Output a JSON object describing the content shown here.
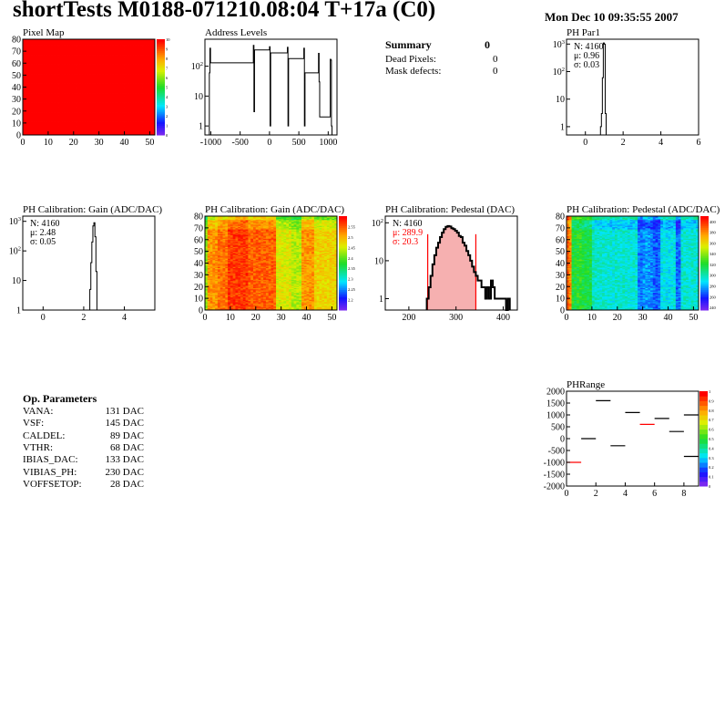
{
  "header": {
    "title": "shortTests M0188-071210.08:04 T+17a (C0)",
    "date": "Mon Dec 10 09:35:55 2007"
  },
  "summary": {
    "title": "Summary",
    "total": "0",
    "rows": [
      {
        "label": "Dead Pixels:",
        "value": "0"
      },
      {
        "label": "Mask defects:",
        "value": "0"
      }
    ]
  },
  "op_parameters": {
    "title": "Op. Parameters",
    "rows": [
      {
        "label": "VANA:",
        "value": "131 DAC"
      },
      {
        "label": "VSF:",
        "value": "145 DAC"
      },
      {
        "label": "CALDEL:",
        "value": "89 DAC"
      },
      {
        "label": "VTHR:",
        "value": "68 DAC"
      },
      {
        "label": "IBIAS_DAC:",
        "value": "133 DAC"
      },
      {
        "label": "VIBIAS_PH:",
        "value": "230 DAC"
      },
      {
        "label": "VOFFSETOP:",
        "value": "28 DAC"
      }
    ]
  },
  "chart_data": [
    {
      "id": "pixelmap",
      "type": "heatmap",
      "title": "Pixel Map",
      "xlim": [
        0,
        52
      ],
      "ylim": [
        0,
        80
      ],
      "zlim": [
        0,
        10
      ],
      "xticks": [
        "0",
        "10",
        "20",
        "30",
        "40",
        "50"
      ],
      "yticks": [
        "0",
        "10",
        "20",
        "30",
        "40",
        "50",
        "60",
        "70",
        "80"
      ],
      "zticks": [
        "0",
        "1",
        "2",
        "3",
        "4",
        "5",
        "6",
        "7",
        "8",
        "9",
        "10"
      ],
      "uniform_value": 10
    },
    {
      "id": "address",
      "type": "bar",
      "title": "Address Levels",
      "xlim": [
        -1100,
        1150
      ],
      "ylim": [
        0.5,
        800
      ],
      "ylog": true,
      "xticks": [
        "-1000",
        "-500",
        "0",
        "500",
        "1000"
      ],
      "yticks": [
        "1",
        "10",
        "10^2"
      ],
      "bin_width": 10,
      "bins": [
        [
          -1025,
          60
        ],
        [
          -1015,
          400
        ],
        [
          -285,
          130
        ],
        [
          -275,
          500
        ],
        [
          -265,
          3
        ],
        [
          -10,
          350
        ],
        [
          0,
          450
        ],
        [
          10,
          1
        ],
        [
          295,
          280
        ],
        [
          305,
          430
        ],
        [
          315,
          1
        ],
        [
          575,
          180
        ],
        [
          585,
          400
        ],
        [
          595,
          1
        ],
        [
          825,
          60
        ],
        [
          835,
          270
        ],
        [
          845,
          30
        ],
        [
          1025,
          2
        ],
        [
          1035,
          170
        ],
        [
          1045,
          160
        ],
        [
          1055,
          1
        ]
      ]
    },
    {
      "id": "phpar1",
      "type": "bar",
      "title": "PH Par1",
      "xlim": [
        -1,
        6
      ],
      "ylim": [
        0.5,
        1500
      ],
      "ylog": true,
      "xticks": [
        "0",
        "2",
        "4",
        "6"
      ],
      "yticks": [
        "1",
        "10",
        "10^2",
        "10^3"
      ],
      "stats": [
        "N: 4160",
        "μ: 0.96",
        "σ: 0.03"
      ],
      "bin_start": 0.8,
      "bin_width": 0.05,
      "counts": [
        1,
        3,
        60,
        1100,
        1000,
        3
      ]
    },
    {
      "id": "gainhist",
      "type": "bar",
      "title": "PH Calibration: Gain (ADC/DAC)",
      "xlim": [
        -1,
        5.5
      ],
      "ylim": [
        1,
        1500
      ],
      "ylog": true,
      "xticks": [
        "0",
        "2",
        "4"
      ],
      "yticks": [
        "1",
        "10",
        "10^2",
        "10^3"
      ],
      "stats": [
        "N: 4160",
        "μ: 2.48",
        "σ: 0.05"
      ],
      "bin_start": 2.2,
      "bin_width": 0.05,
      "counts": [
        1,
        1,
        5,
        40,
        200,
        700,
        900,
        300,
        20,
        1
      ]
    },
    {
      "id": "gainmap",
      "type": "heatmap",
      "title": "PH Calibration: Gain (ADC/DAC)",
      "xlim": [
        0,
        52
      ],
      "ylim": [
        0,
        80
      ],
      "zlim": [
        2.15,
        2.6
      ],
      "xticks": [
        "0",
        "10",
        "20",
        "30",
        "40",
        "50"
      ],
      "yticks": [
        "0",
        "10",
        "20",
        "30",
        "40",
        "50",
        "60",
        "70",
        "80"
      ],
      "zticks": [
        "2.2",
        "2.25",
        "2.3",
        "2.35",
        "2.4",
        "2.45",
        "2.5",
        "2.55"
      ],
      "column_profile": [
        2.42,
        2.52,
        2.52,
        2.52,
        2.52,
        2.54,
        2.54,
        2.54,
        2.54,
        2.57,
        2.57,
        2.57,
        2.57,
        2.57,
        2.57,
        2.57,
        2.57,
        2.55,
        2.55,
        2.55,
        2.55,
        2.55,
        2.55,
        2.55,
        2.55,
        2.55,
        2.55,
        2.55,
        2.46,
        2.46,
        2.46,
        2.46,
        2.46,
        2.46,
        2.44,
        2.44,
        2.44,
        2.44,
        2.52,
        2.52,
        2.52,
        2.52,
        2.52,
        2.48,
        2.48,
        2.48,
        2.48,
        2.48,
        2.48,
        2.48,
        2.48,
        2.48
      ]
    },
    {
      "id": "pedhist",
      "type": "bar",
      "title": "PH Calibration: Pedestal (DAC)",
      "xlim": [
        150,
        430
      ],
      "ylim": [
        0.5,
        150
      ],
      "ylog": true,
      "xticks": [
        "200",
        "300",
        "400"
      ],
      "yticks": [
        "1",
        "10",
        "10^2"
      ],
      "stats": [
        "N: 4160",
        "μ: 289.9",
        "σ: 20.3"
      ],
      "fit_range": [
        240,
        342
      ],
      "bin_start": 238,
      "bin_width": 4,
      "counts": [
        1,
        2,
        4,
        8,
        14,
        22,
        30,
        42,
        55,
        68,
        78,
        82,
        80,
        72,
        68,
        62,
        55,
        45,
        42,
        30,
        25,
        18,
        14,
        10,
        7,
        5,
        4,
        3,
        3,
        2,
        2,
        1,
        2,
        1,
        3,
        2,
        1,
        1,
        1,
        1,
        1,
        1,
        0,
        1
      ]
    },
    {
      "id": "pedmap",
      "type": "heatmap",
      "title": "PH Calibration: Pedestal (ADC/DAC)",
      "xlim": [
        0,
        52
      ],
      "ylim": [
        0,
        80
      ],
      "zlim": [
        235,
        410
      ],
      "xticks": [
        "0",
        "10",
        "20",
        "30",
        "40",
        "50"
      ],
      "yticks": [
        "0",
        "10",
        "20",
        "30",
        "40",
        "50",
        "60",
        "70",
        "80"
      ],
      "zticks": [
        "240",
        "260",
        "280",
        "300",
        "320",
        "340",
        "360",
        "380",
        "400"
      ],
      "column_profile": [
        390,
        380,
        320,
        320,
        322,
        325,
        320,
        318,
        318,
        318,
        300,
        298,
        296,
        295,
        295,
        294,
        296,
        295,
        293,
        296,
        295,
        294,
        296,
        295,
        294,
        293,
        295,
        296,
        272,
        270,
        275,
        278,
        276,
        274,
        268,
        266,
        270,
        290,
        292,
        290,
        288,
        290,
        292,
        268,
        270,
        295,
        296,
        295,
        294,
        296,
        295,
        295
      ]
    },
    {
      "id": "phrange",
      "type": "segments",
      "title": "PHRange",
      "xlim": [
        0,
        9
      ],
      "ylim": [
        -2000,
        2000
      ],
      "zlim": [
        0,
        1
      ],
      "xticks": [
        "0",
        "2",
        "4",
        "6",
        "8"
      ],
      "yticks": [
        "-2000",
        "-1500",
        "-1000",
        "-500",
        "0",
        "500",
        "1000",
        "1500",
        "2000"
      ],
      "zticks": [
        "0",
        "0.1",
        "0.2",
        "0.3",
        "0.4",
        "0.5",
        "0.6",
        "0.7",
        "0.8",
        "0.9",
        "1"
      ],
      "segments": [
        [
          0,
          1,
          -1000,
          "#ff0000"
        ],
        [
          1,
          2,
          0,
          "#000000"
        ],
        [
          2,
          3,
          1600,
          "#000000"
        ],
        [
          3,
          4,
          -300,
          "#000000"
        ],
        [
          4,
          5,
          1100,
          "#000000"
        ],
        [
          5,
          6,
          600,
          "#ff0000"
        ],
        [
          6,
          7,
          850,
          "#000000"
        ],
        [
          7,
          8,
          300,
          "#000000"
        ],
        [
          8,
          9,
          1000,
          "#000000"
        ],
        [
          8,
          9,
          -750,
          "#000000"
        ]
      ]
    }
  ]
}
